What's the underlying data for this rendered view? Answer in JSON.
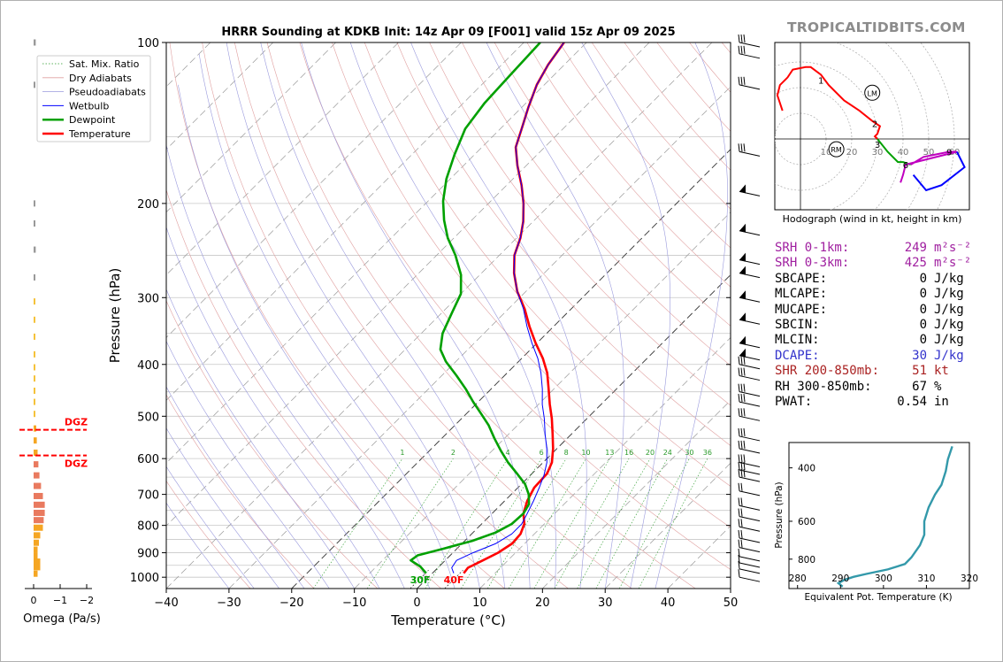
{
  "watermark": "TROPICALTIDBITS.COM",
  "chart_data": [
    {
      "type": "line",
      "chart_kind": "skew-T log-p sounding",
      "title": "HRRR Sounding at KDKB Init: 14z Apr 09 [F001] valid 15z Apr 09 2025",
      "xlabel": "Temperature (°C)",
      "ylabel": "Pressure (hPa)",
      "xlim": [
        -40,
        50
      ],
      "ylim": [
        1050,
        100
      ],
      "y_scale": "log",
      "x_ticks": [
        -40,
        -30,
        -20,
        -10,
        0,
        10,
        20,
        30,
        40,
        50
      ],
      "x_tick_labels": [
        "−40",
        "−30",
        "−20",
        "−10",
        "0",
        "10",
        "20",
        "30",
        "40",
        "50"
      ],
      "y_ticks": [
        100,
        200,
        300,
        400,
        500,
        600,
        700,
        800,
        900,
        1000
      ],
      "y_tick_labels": [
        "100",
        "200",
        "300",
        "400",
        "500",
        "600",
        "700",
        "800",
        "900",
        "1000"
      ],
      "grid": true,
      "legend_position": "top-left",
      "legend": [
        "Sat. Mix. Ratio",
        "Dry Adiabats",
        "Pseudoadiabats",
        "Wetbulb",
        "Dewpoint",
        "Temperature"
      ],
      "mixing_ratio_labels": [
        "1",
        "2",
        "4",
        "6",
        "8",
        "10",
        "13",
        "16",
        "20",
        "24",
        "30",
        "36"
      ],
      "mixing_ratio_values": [
        1,
        2,
        4,
        6,
        8,
        10,
        13,
        16,
        20,
        24,
        30,
        36
      ],
      "annotations": [
        "30F",
        "40F"
      ],
      "freezing_marks_c": [
        -1.1,
        4.4
      ],
      "series": [
        {
          "name": "Temperature",
          "color": "#ff0000",
          "points": [
            [
              5.0,
              983
            ],
            [
              4.8,
              960
            ],
            [
              6.0,
              930
            ],
            [
              7.2,
              900
            ],
            [
              8.0,
              865
            ],
            [
              7.8,
              830
            ],
            [
              6.8,
              795
            ],
            [
              5.0,
              760
            ],
            [
              3.6,
              720
            ],
            [
              2.6,
              680
            ],
            [
              2.4,
              640
            ],
            [
              1.4,
              610
            ],
            [
              -0.6,
              575
            ],
            [
              -3.0,
              540
            ],
            [
              -5.6,
              505
            ],
            [
              -8.2,
              475
            ],
            [
              -10.8,
              445
            ],
            [
              -13.6,
              415
            ],
            [
              -16.6,
              390
            ],
            [
              -20.2,
              365
            ],
            [
              -23.8,
              340
            ],
            [
              -27.4,
              315
            ],
            [
              -31.4,
              292
            ],
            [
              -34.8,
              270
            ],
            [
              -37.6,
              250
            ],
            [
              -39.4,
              232
            ],
            [
              -41.6,
              216
            ],
            [
              -44.4,
              200
            ],
            [
              -47.6,
              185
            ],
            [
              -51.4,
              170
            ],
            [
              -54.6,
              157
            ],
            [
              -56.6,
              145
            ],
            [
              -59.0,
              132
            ],
            [
              -61.2,
              120
            ],
            [
              -62.6,
              110
            ],
            [
              -63.6,
              100
            ]
          ]
        },
        {
          "name": "Dewpoint",
          "color": "#00a000",
          "points": [
            [
              -1.0,
              983
            ],
            [
              -3.0,
              955
            ],
            [
              -5.5,
              930
            ],
            [
              -5.2,
              910
            ],
            [
              -2.2,
              885
            ],
            [
              1.2,
              855
            ],
            [
              3.6,
              825
            ],
            [
              4.8,
              795
            ],
            [
              5.0,
              760
            ],
            [
              4.4,
              730
            ],
            [
              2.8,
              700
            ],
            [
              0.6,
              670
            ],
            [
              -2.4,
              640
            ],
            [
              -5.6,
              610
            ],
            [
              -8.6,
              580
            ],
            [
              -11.6,
              550
            ],
            [
              -14.6,
              520
            ],
            [
              -17.6,
              495
            ],
            [
              -20.8,
              470
            ],
            [
              -24.0,
              445
            ],
            [
              -27.6,
              420
            ],
            [
              -31.6,
              395
            ],
            [
              -34.4,
              375
            ],
            [
              -36.6,
              350
            ],
            [
              -38.4,
              320
            ],
            [
              -40.0,
              295
            ],
            [
              -43.0,
              272
            ],
            [
              -47.0,
              250
            ],
            [
              -51.0,
              232
            ],
            [
              -54.4,
              215
            ],
            [
              -57.6,
              198
            ],
            [
              -60.6,
              180
            ],
            [
              -63.2,
              162
            ],
            [
              -65.6,
              145
            ],
            [
              -66.6,
              130
            ],
            [
              -67.0,
              115
            ],
            [
              -67.4,
              100
            ]
          ]
        },
        {
          "name": "Wetbulb",
          "color": "#0000ff",
          "points": [
            [
              3.4,
              983
            ],
            [
              2.2,
              960
            ],
            [
              1.8,
              930
            ],
            [
              3.2,
              900
            ],
            [
              5.4,
              865
            ],
            [
              6.4,
              830
            ],
            [
              6.4,
              795
            ],
            [
              5.6,
              760
            ],
            [
              4.6,
              720
            ],
            [
              3.4,
              680
            ],
            [
              2.2,
              645
            ],
            [
              0.6,
              610
            ],
            [
              -1.6,
              575
            ],
            [
              -4.2,
              540
            ],
            [
              -6.8,
              505
            ],
            [
              -9.4,
              475
            ],
            [
              -11.8,
              445
            ],
            [
              -14.6,
              415
            ],
            [
              -17.4,
              390
            ],
            [
              -20.8,
              365
            ],
            [
              -24.2,
              340
            ],
            [
              -27.6,
              315
            ],
            [
              -31.4,
              292
            ],
            [
              -34.8,
              270
            ],
            [
              -37.6,
              250
            ],
            [
              -39.4,
              232
            ],
            [
              -41.6,
              216
            ],
            [
              -44.4,
              200
            ],
            [
              -47.6,
              185
            ],
            [
              -51.4,
              170
            ],
            [
              -54.6,
              157
            ],
            [
              -56.6,
              145
            ],
            [
              -59.0,
              132
            ],
            [
              -61.2,
              120
            ],
            [
              -62.6,
              110
            ],
            [
              -63.6,
              100
            ]
          ]
        }
      ]
    },
    {
      "type": "bar",
      "chart_kind": "omega profile",
      "xlabel": "Omega (Pa/s)",
      "x_ticks": [
        0,
        -1,
        -2
      ],
      "x_tick_labels": [
        "0",
        "−1",
        "−2"
      ],
      "dgz_label": "DGZ",
      "dgz_pressures": [
        530,
        592
      ],
      "bars": [
        [
          -0.08,
          100
        ],
        [
          -0.02,
          120
        ],
        [
          -0.02,
          200
        ],
        [
          -0.03,
          218
        ],
        [
          -0.08,
          244
        ],
        [
          -0.04,
          275
        ],
        [
          -0.05,
          305
        ],
        [
          -0.05,
          330
        ],
        [
          -0.02,
          355
        ],
        [
          -0.02,
          383
        ],
        [
          -0.05,
          405
        ],
        [
          -0.05,
          425
        ],
        [
          -0.02,
          448
        ],
        [
          -0.02,
          470
        ],
        [
          -0.05,
          495
        ],
        [
          -0.1,
          527
        ],
        [
          -0.12,
          555
        ],
        [
          -0.15,
          585
        ],
        [
          -0.18,
          615
        ],
        [
          -0.22,
          645
        ],
        [
          -0.28,
          675
        ],
        [
          -0.35,
          705
        ],
        [
          -0.42,
          732
        ],
        [
          -0.42,
          758
        ],
        [
          -0.38,
          782
        ],
        [
          -0.35,
          808
        ],
        [
          -0.25,
          835
        ],
        [
          -0.2,
          862
        ],
        [
          -0.15,
          888
        ],
        [
          -0.15,
          912
        ],
        [
          -0.25,
          935
        ],
        [
          -0.25,
          958
        ],
        [
          -0.15,
          985
        ]
      ]
    },
    {
      "type": "line",
      "chart_kind": "hodograph",
      "caption": "Hodograph (wind in kt, height in km)",
      "ring_labels": [
        "10",
        "20",
        "30",
        "40",
        "50",
        "60"
      ],
      "ring_values_kt": [
        10,
        20,
        30,
        40,
        50,
        60
      ],
      "height_labels": [
        {
          "km": "1",
          "u": 8,
          "v": 23
        },
        {
          "km": "2",
          "u": 29,
          "v": 6
        },
        {
          "km": "3",
          "u": 30,
          "v": -2
        },
        {
          "km": "6",
          "u": 41,
          "v": -10
        },
        {
          "km": "9",
          "u": 58,
          "v": -5
        }
      ],
      "markers": [
        {
          "label": "LM",
          "u": 28,
          "v": 18
        },
        {
          "label": "RM",
          "u": 14,
          "v": -4
        }
      ],
      "segments": [
        {
          "color": "#ff0000",
          "points": [
            [
              -7,
              11
            ],
            [
              -9,
              17
            ],
            [
              -8,
              21
            ],
            [
              -5,
              24
            ],
            [
              -3,
              27
            ],
            [
              2,
              28
            ],
            [
              4,
              28
            ],
            [
              8,
              25
            ],
            [
              11,
              21
            ],
            [
              17,
              15
            ],
            [
              23,
              11
            ],
            [
              28,
              7
            ],
            [
              31,
              5
            ],
            [
              30,
              2
            ],
            [
              29,
              1
            ],
            [
              30,
              0
            ]
          ]
        },
        {
          "color": "#00a000",
          "points": [
            [
              30,
              0
            ],
            [
              34,
              -5
            ],
            [
              38,
              -9
            ],
            [
              40,
              -9
            ],
            [
              43,
              -10
            ]
          ]
        },
        {
          "color": "#c000c0",
          "points": [
            [
              43,
              -10
            ],
            [
              48,
              -7
            ],
            [
              53,
              -6
            ],
            [
              58,
              -5
            ],
            [
              61,
              -5
            ],
            [
              41,
              -10
            ],
            [
              40,
              -14
            ],
            [
              39,
              -17
            ]
          ]
        },
        {
          "color": "#0000ff",
          "points": [
            [
              61,
              -5
            ],
            [
              64,
              -11
            ],
            [
              55,
              -18
            ],
            [
              49,
              -20
            ],
            [
              44,
              -14
            ]
          ]
        }
      ]
    },
    {
      "type": "line",
      "chart_kind": "theta-e profile",
      "xlabel": "Equivalent Pot. Temperature (K)",
      "ylabel": "Pressure (hPa)",
      "xlim": [
        278,
        320
      ],
      "ylim": [
        1000,
        330
      ],
      "x_ticks": [
        280,
        290,
        300,
        310,
        320
      ],
      "y_ticks": [
        400,
        600,
        800
      ],
      "color": "#3399aa",
      "points": [
        [
          290.5,
          985
        ],
        [
          289.5,
          960
        ],
        [
          291,
          935
        ],
        [
          293,
          915
        ],
        [
          296,
          895
        ],
        [
          301,
          865
        ],
        [
          305,
          830
        ],
        [
          306.5,
          790
        ],
        [
          308.5,
          720
        ],
        [
          309.5,
          665
        ],
        [
          309.5,
          600
        ],
        [
          310.5,
          540
        ],
        [
          312,
          490
        ],
        [
          313.5,
          455
        ],
        [
          314.5,
          410
        ],
        [
          315,
          375
        ],
        [
          316,
          340
        ]
      ]
    }
  ],
  "stats": [
    {
      "label": "SRH 0-1km:",
      "value": "249",
      "unit": "m²s⁻²",
      "color": "#a020a0"
    },
    {
      "label": "SRH 0-3km:",
      "value": "425",
      "unit": "m²s⁻²",
      "color": "#a020a0"
    },
    {
      "label": "SBCAPE:",
      "value": "0",
      "unit": "J/kg",
      "color": "#000000"
    },
    {
      "label": "MLCAPE:",
      "value": "0",
      "unit": "J/kg",
      "color": "#000000"
    },
    {
      "label": "MUCAPE:",
      "value": "0",
      "unit": "J/kg",
      "color": "#000000"
    },
    {
      "label": "SBCIN:",
      "value": "0",
      "unit": "J/kg",
      "color": "#000000"
    },
    {
      "label": "MLCIN:",
      "value": "0",
      "unit": "J/kg",
      "color": "#000000"
    },
    {
      "label": "DCAPE:",
      "value": "30",
      "unit": "J/kg",
      "color": "#3333cc"
    },
    {
      "label": "SHR 200-850mb:",
      "value": "51",
      "unit": "kt",
      "color": "#aa2222"
    },
    {
      "label": "RH 300-850mb:",
      "value": "67",
      "unit": "%",
      "color": "#000000"
    },
    {
      "label": "PWAT:",
      "value": "0.54",
      "unit": "in",
      "color": "#000000"
    }
  ]
}
